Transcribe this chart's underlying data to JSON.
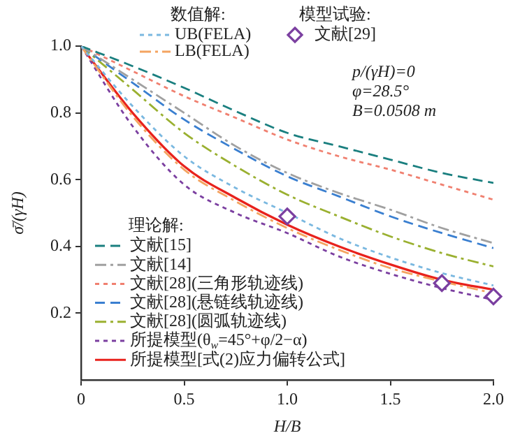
{
  "chart_data": {
    "type": "line",
    "xlabel": "H/B",
    "ylabel": "σ̄/(γH)",
    "x": [
      0,
      0.25,
      0.5,
      0.75,
      1,
      1.25,
      1.5,
      1.75,
      2
    ],
    "xlim": [
      0,
      2
    ],
    "xticks": [
      0,
      0.5,
      {
        "value": 1,
        "label": "1.0"
      },
      1.5,
      {
        "value": 2,
        "label": "2.0"
      }
    ],
    "ylim": [
      0,
      1
    ],
    "yticks": [
      0.2,
      0.4,
      0.6,
      0.8,
      {
        "value": 1,
        "label": "1.0"
      }
    ],
    "grid": false,
    "legend": "top",
    "marker": "none",
    "annotations": [
      "数值解:",
      "模型试验:",
      "理论解:",
      "p/(γH)=0",
      "φ=28.5°",
      "B=0.0508 m"
    ],
    "series": [
      {
        "name": "UB(FELA)",
        "color": "#7ab8e0",
        "line_style": "dotted",
        "values": [
          1,
          0.82,
          0.67,
          0.575,
          0.5,
          0.425,
          0.367,
          0.32,
          0.283
        ]
      },
      {
        "name": "LB(FELA)",
        "color": "#f4a460",
        "line_style": "dashdot",
        "values": [
          1,
          0.79,
          0.63,
          0.535,
          0.455,
          0.39,
          0.335,
          0.295,
          0.26
        ]
      },
      {
        "name": "文献[29]",
        "type": "scatter",
        "marker": "diamond",
        "color": "#7b3fa0",
        "x": [
          1.0,
          1.75,
          2.0
        ],
        "values": [
          0.49,
          0.29,
          0.25
        ]
      },
      {
        "name": "文献[15]",
        "color": "#1a7f7f",
        "line_style": "dashed",
        "values": [
          1,
          0.94,
          0.875,
          0.805,
          0.74,
          0.7,
          0.66,
          0.62,
          0.59
        ]
      },
      {
        "name": "文献[14]",
        "color": "#a0a0a0",
        "line_style": "dashdot",
        "values": [
          1,
          0.9,
          0.8,
          0.7,
          0.62,
          0.56,
          0.51,
          0.455,
          0.41
        ]
      },
      {
        "name": "文献[28](三角形轨迹线)",
        "color": "#f08070",
        "line_style": "dotted",
        "values": [
          1,
          0.925,
          0.85,
          0.785,
          0.72,
          0.67,
          0.63,
          0.585,
          0.54
        ]
      },
      {
        "name": "文献[28](悬链线轨迹线)",
        "color": "#3a7fd0",
        "line_style": "dashed",
        "values": [
          1,
          0.89,
          0.78,
          0.69,
          0.61,
          0.55,
          0.49,
          0.44,
          0.395
        ]
      },
      {
        "name": "文献[28](圆弧轨迹线)",
        "color": "#9ab030",
        "line_style": "dashdot",
        "values": [
          1,
          0.87,
          0.74,
          0.64,
          0.555,
          0.49,
          0.43,
          0.38,
          0.34
        ]
      },
      {
        "name": "所提模型(θ$_{w}$=45°+φ/2−α)",
        "color": "#7b3fa0",
        "line_style": "dotted",
        "values": [
          1,
          0.76,
          0.585,
          0.5,
          0.44,
          0.37,
          0.318,
          0.275,
          0.24
        ]
      },
      {
        "name": "所提模型[式(2)应力偏转公式]",
        "color": "#e8221c",
        "line_style": "solid",
        "values": [
          1,
          0.8,
          0.64,
          0.545,
          0.465,
          0.4,
          0.346,
          0.3,
          0.27
        ]
      }
    ]
  }
}
